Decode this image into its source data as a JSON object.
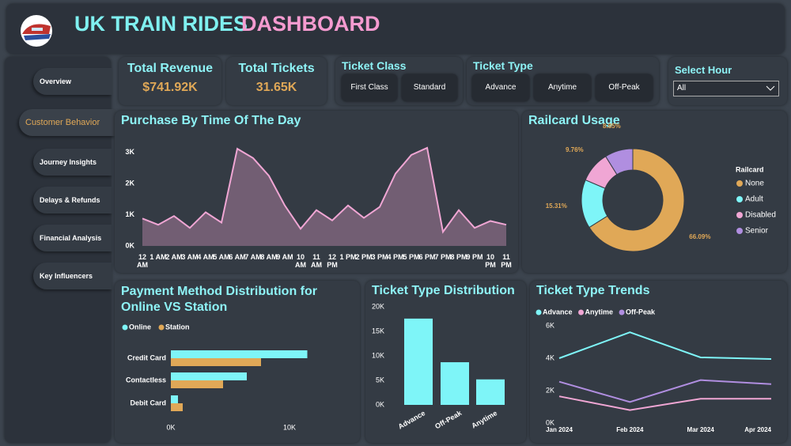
{
  "header": {
    "title": "UK TRAIN RIDES",
    "title_accent": "DASHBOARD"
  },
  "nav": [
    "Overview",
    "Customer Behavior",
    "Journey Insights",
    "Delays & Refunds",
    "Financial Analysis",
    "Key Influencers"
  ],
  "kpis": [
    {
      "label": "Total Revenue",
      "value": "$741.92K"
    },
    {
      "label": "Total Tickets",
      "value": "31.65K"
    }
  ],
  "slicers": [
    {
      "title": "Ticket Class",
      "options": [
        "First Class",
        "Standard"
      ]
    },
    {
      "title": "Ticket Type",
      "options": [
        "Advance",
        "Anytime",
        "Off-Peak"
      ]
    },
    {
      "title": "Select Hour",
      "selected": "All"
    }
  ],
  "chart_data": [
    {
      "type": "area",
      "title": "Purchase By Time Of The Day",
      "categories": [
        "12 AM",
        "1 AM",
        "2 AM",
        "3 AM",
        "4 AM",
        "5 AM",
        "6 AM",
        "7 AM",
        "8 AM",
        "9 AM",
        "10 AM",
        "11 AM",
        "12 PM",
        "1 PM",
        "2 PM",
        "3 PM",
        "4 PM",
        "5 PM",
        "6 PM",
        "7 PM",
        "8 PM",
        "9 PM",
        "10 PM",
        "11 PM"
      ],
      "values": [
        880,
        680,
        960,
        580,
        1080,
        750,
        3120,
        2820,
        2250,
        1300,
        550,
        1150,
        820,
        1300,
        900,
        1250,
        2320,
        2920,
        3150,
        450,
        1150,
        580,
        800,
        680
      ],
      "color": "#f0a6d4",
      "ylim": [
        0,
        3300
      ],
      "yticks": [
        {
          "value": 0,
          "label": "0K"
        },
        {
          "value": 1000,
          "label": "1K"
        },
        {
          "value": 2000,
          "label": "2K"
        },
        {
          "value": 3000,
          "label": "3K"
        }
      ]
    },
    {
      "type": "donut",
      "title": "Railcard Usage",
      "legend_title": "Railcard",
      "categories": [
        "None",
        "Adult",
        "Disabled",
        "Senior"
      ],
      "values": [
        66.09,
        15.31,
        9.76,
        8.85
      ],
      "value_labels": [
        "66.09%",
        "15.31%",
        "9.76%",
        "8.85%"
      ],
      "colors": [
        "#e0a857",
        "#7ef5f8",
        "#f0a6d4",
        "#b08ee0"
      ]
    },
    {
      "type": "hbar",
      "title": "Payment Method Distribution for Online VS Station",
      "categories": [
        "Credit Card",
        "Contactless",
        "Debit Card"
      ],
      "series": [
        {
          "name": "Online",
          "color": "#7ef5f8",
          "values": [
            11500,
            6400,
            600
          ]
        },
        {
          "name": "Station",
          "color": "#e0a857",
          "values": [
            7600,
            4400,
            1000
          ]
        }
      ],
      "xlim": [
        0,
        15000
      ],
      "xticks": [
        {
          "value": 0,
          "label": "0K"
        },
        {
          "value": 10000,
          "label": "10K"
        }
      ]
    },
    {
      "type": "bar",
      "title": "Ticket Type Distribution",
      "categories": [
        "Advance",
        "Off-Peak",
        "Anytime"
      ],
      "values": [
        17600,
        8700,
        5200
      ],
      "color": "#7ef5f8",
      "ylim": [
        0,
        20000
      ],
      "yticks": [
        {
          "value": 0,
          "label": "0K"
        },
        {
          "value": 5000,
          "label": "5K"
        },
        {
          "value": 10000,
          "label": "10K"
        },
        {
          "value": 15000,
          "label": "15K"
        },
        {
          "value": 20000,
          "label": "20K"
        }
      ]
    },
    {
      "type": "line",
      "title": "Ticket Type Trends",
      "categories": [
        "Jan 2024",
        "Feb 2024",
        "Mar 2024",
        "Apr 2024"
      ],
      "series": [
        {
          "name": "Advance",
          "color": "#7ef5f8",
          "values": [
            4000,
            5600,
            4050,
            3950
          ]
        },
        {
          "name": "Anytime",
          "color": "#f0a6d4",
          "values": [
            1650,
            800,
            1500,
            1500
          ]
        },
        {
          "name": "Off-Peak",
          "color": "#b08ee0",
          "values": [
            2550,
            1300,
            2650,
            2400
          ]
        }
      ],
      "ylim": [
        0,
        6000
      ],
      "yticks": [
        {
          "value": 0,
          "label": "0K"
        },
        {
          "value": 2000,
          "label": "2K"
        },
        {
          "value": 4000,
          "label": "4K"
        },
        {
          "value": 6000,
          "label": "6K"
        }
      ]
    }
  ]
}
